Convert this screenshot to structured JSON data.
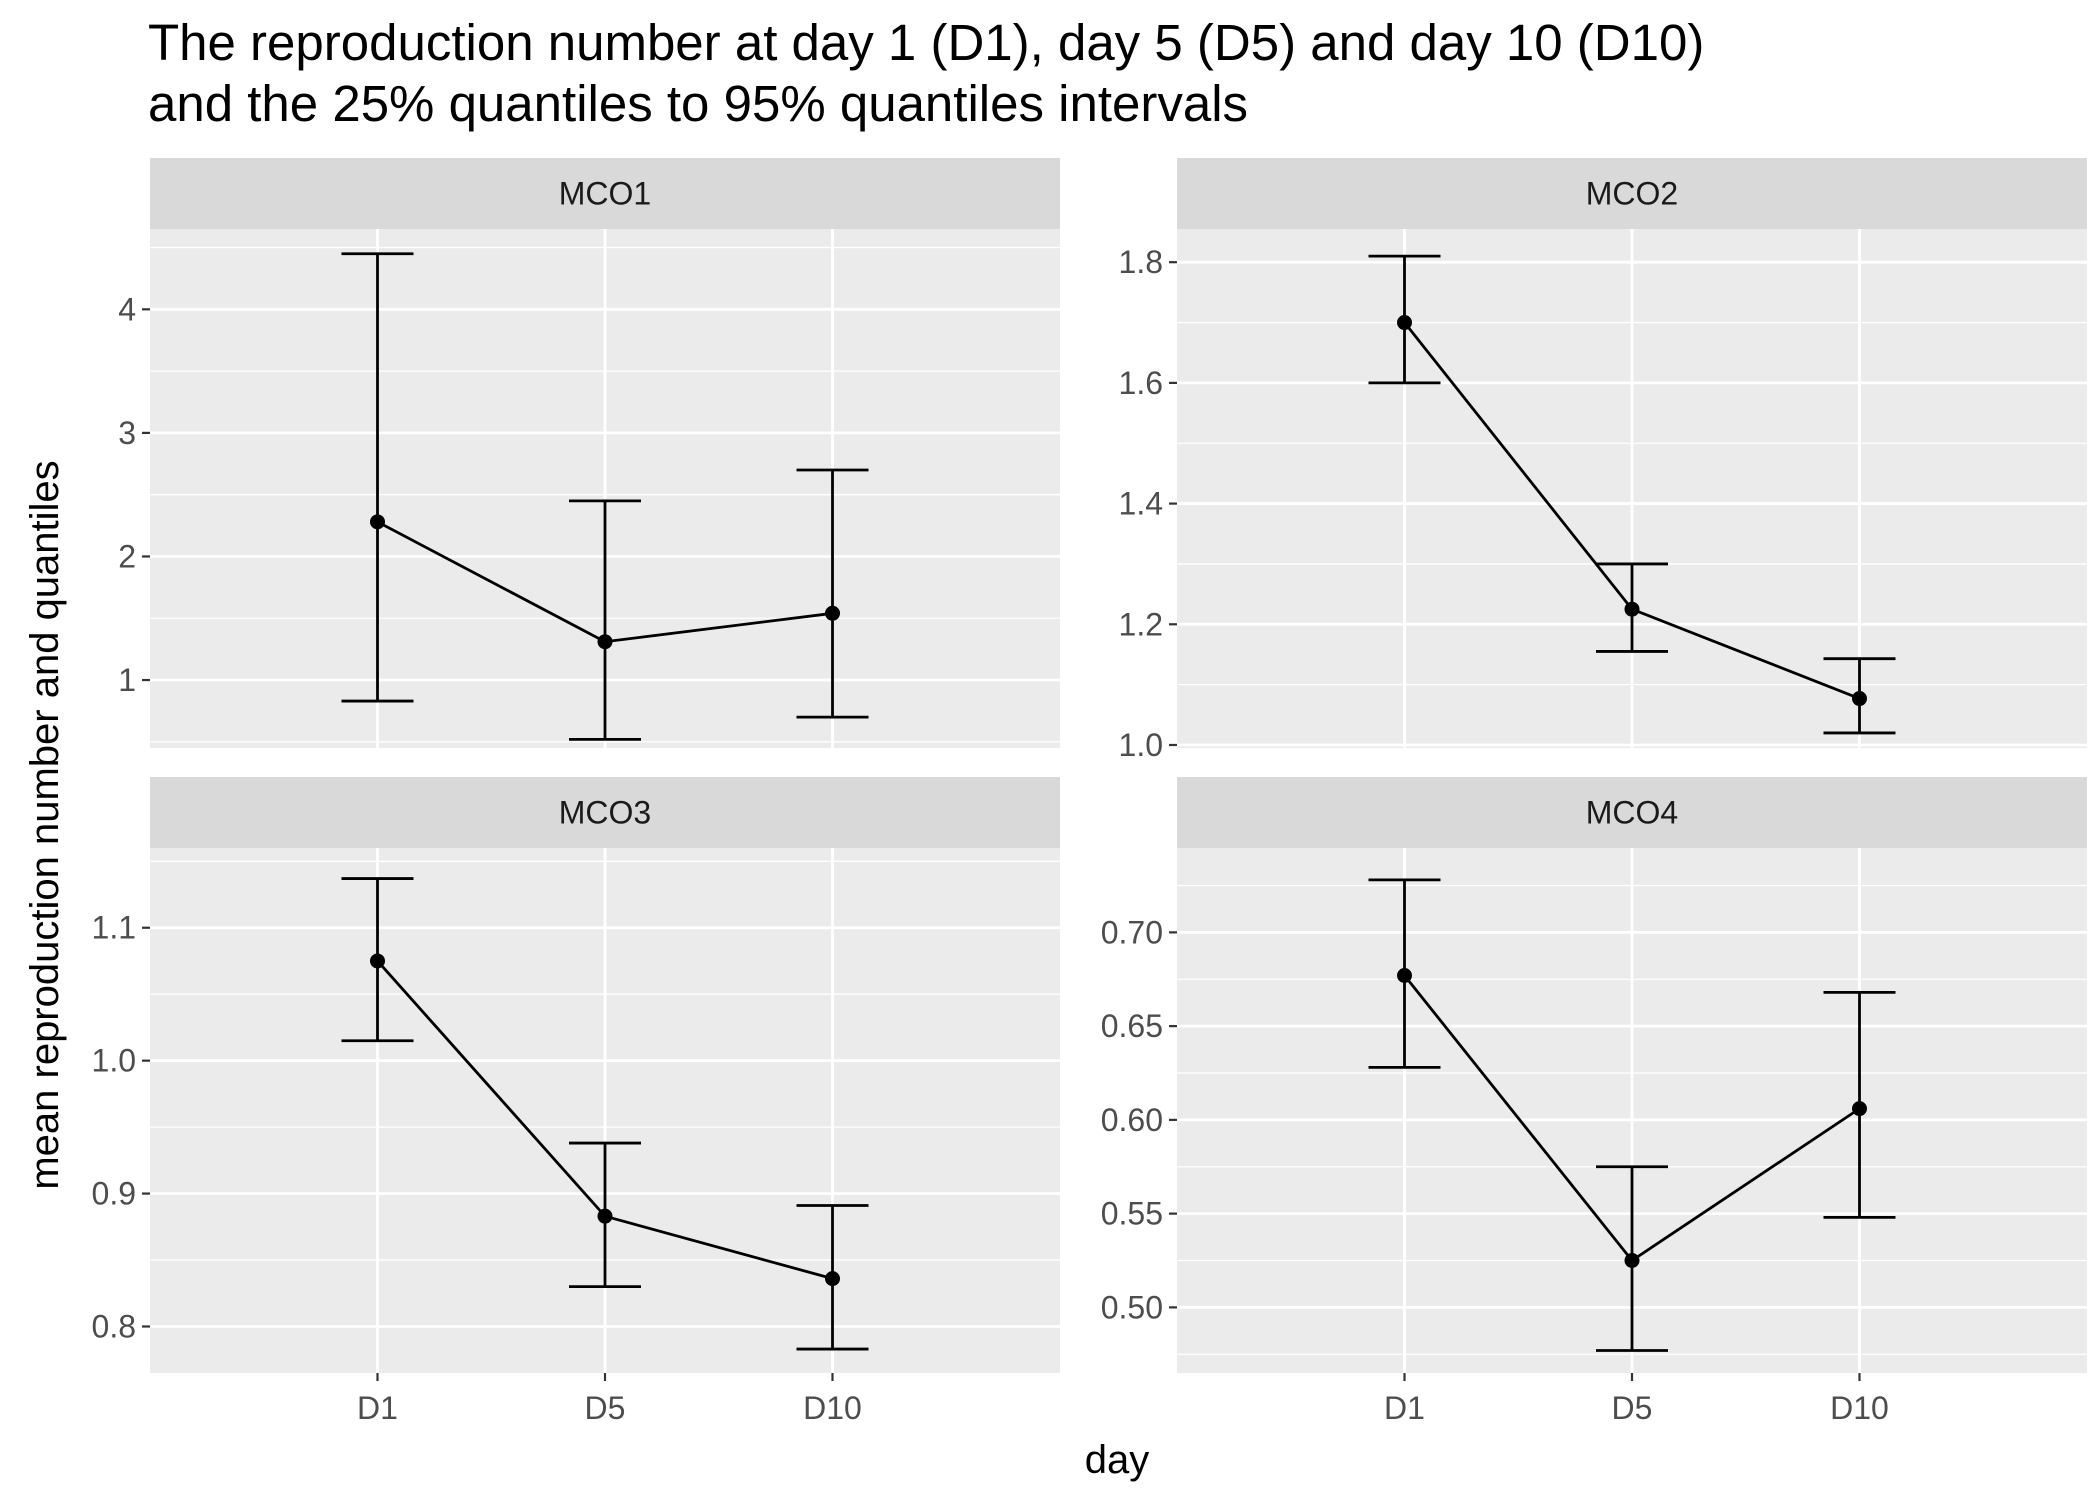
{
  "chart_data": {
    "type": "line",
    "title_lines": [
      "The reproduction number at day 1 (D1), day 5 (D5) and day 10 (D10)",
      "and the 25% quantiles to 95% quantiles intervals"
    ],
    "xlabel": "day",
    "ylabel": "mean reproduction number and quantiles",
    "categories": [
      "D1",
      "D5",
      "D10"
    ],
    "grid": true,
    "facets": [
      {
        "name": "MCO1",
        "ylim": [
          0.45,
          4.65
        ],
        "yticks": [
          "1",
          "2",
          "3",
          "4"
        ],
        "ytick_values": [
          1,
          2,
          3,
          4
        ],
        "mean": [
          2.28,
          1.31,
          1.54
        ],
        "lower": [
          0.83,
          0.52,
          0.7
        ],
        "upper": [
          4.45,
          2.45,
          2.7
        ]
      },
      {
        "name": "MCO2",
        "ylim": [
          0.995,
          1.855
        ],
        "yticks": [
          "1.0",
          "1.2",
          "1.4",
          "1.6",
          "1.8"
        ],
        "ytick_values": [
          1.0,
          1.2,
          1.4,
          1.6,
          1.8
        ],
        "mean": [
          1.7,
          1.225,
          1.077
        ],
        "lower": [
          1.6,
          1.155,
          1.02
        ],
        "upper": [
          1.81,
          1.3,
          1.143
        ]
      },
      {
        "name": "MCO3",
        "ylim": [
          0.765,
          1.16
        ],
        "yticks": [
          "0.8",
          "0.9",
          "1.0",
          "1.1"
        ],
        "ytick_values": [
          0.8,
          0.9,
          1.0,
          1.1
        ],
        "mean": [
          1.075,
          0.883,
          0.836
        ],
        "lower": [
          1.015,
          0.83,
          0.783
        ],
        "upper": [
          1.137,
          0.938,
          0.891
        ]
      },
      {
        "name": "MCO4",
        "ylim": [
          0.465,
          0.745
        ],
        "yticks": [
          "0.50",
          "0.55",
          "0.60",
          "0.65",
          "0.70"
        ],
        "ytick_values": [
          0.5,
          0.55,
          0.6,
          0.65,
          0.7
        ],
        "mean": [
          0.677,
          0.525,
          0.606
        ],
        "lower": [
          0.628,
          0.477,
          0.548
        ],
        "upper": [
          0.728,
          0.575,
          0.668
        ]
      }
    ],
    "colors": {
      "panel_bg": "#ebebeb",
      "strip_bg": "#d9d9d9",
      "grid": "#ffffff",
      "line": "#000000"
    }
  }
}
